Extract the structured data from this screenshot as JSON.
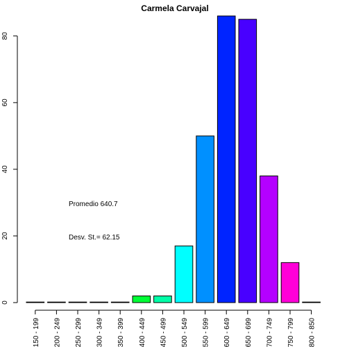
{
  "chart_data": {
    "type": "bar",
    "title": "Carmela Carvajal",
    "xlabel": "",
    "ylabel": "",
    "ylim": [
      0,
      86
    ],
    "y_ticks": [
      0,
      20,
      40,
      60,
      80
    ],
    "categories": [
      "150 - 199",
      "200 - 249",
      "250 - 299",
      "300 - 349",
      "350 - 399",
      "400 - 449",
      "450 - 499",
      "500 - 549",
      "550 - 599",
      "600 - 649",
      "650 - 699",
      "700 - 749",
      "750 - 799",
      "800 - 850"
    ],
    "values": [
      0,
      0,
      0,
      0,
      0,
      2,
      2,
      17,
      50,
      86,
      85,
      38,
      12,
      0
    ],
    "colors": [
      "#FF0000",
      "#FF7200",
      "#FFE400",
      "#A8FF00",
      "#36FF00",
      "#00FF36",
      "#00FFA8",
      "#00FFFF",
      "#0090FF",
      "#0024FF",
      "#4800FF",
      "#B400FF",
      "#FF00D8",
      "#FF0066"
    ],
    "annotations": [
      "Promedio 640.7",
      "Desv. St.= 62.15"
    ],
    "grid": false
  }
}
